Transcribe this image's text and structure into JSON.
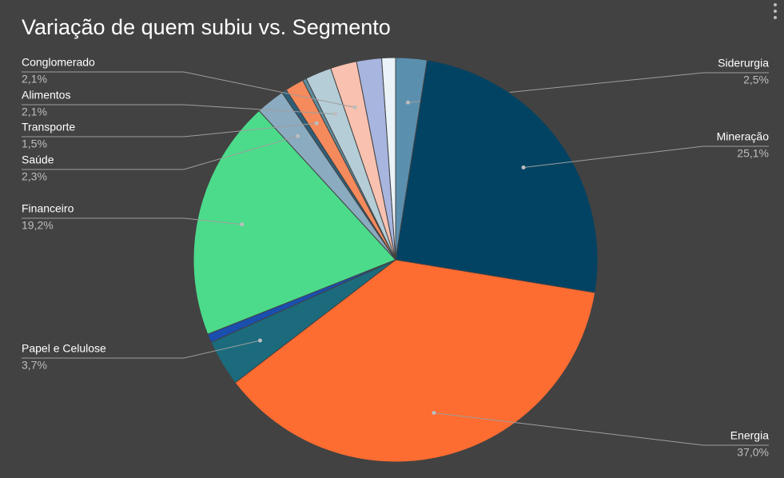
{
  "chart_data": {
    "type": "pie",
    "title": "Variação de quem subiu vs. Segmento",
    "categories": [
      "Siderurgia",
      "Mineração",
      "Energia",
      "Papel e Celulose",
      null,
      "Financeiro",
      "Saúde",
      null,
      "Transporte",
      null,
      "Alimentos",
      "Conglomerado",
      null,
      null
    ],
    "values": [
      2.5,
      25.1,
      37.0,
      3.7,
      0.7,
      19.2,
      2.3,
      0.4,
      1.5,
      0.3,
      2.1,
      2.1,
      2.0,
      1.1
    ],
    "value_labels": [
      "2,5%",
      "25,1%",
      "37,0%",
      "3,7%",
      null,
      "19,2%",
      "2,3%",
      null,
      "1,5%",
      null,
      "2,1%",
      "2,1%",
      null,
      null
    ],
    "colors": [
      "#5b8fae",
      "#024363",
      "#fd6c31",
      "#1b6b7d",
      "#1a4fae",
      "#4cdb8b",
      "#8aabc0",
      "#2e5f78",
      "#f58a5c",
      "#5f8fa0",
      "#b4cdd7",
      "#f8c1b0",
      "#a7b5df",
      "#e9f3f8"
    ]
  }
}
